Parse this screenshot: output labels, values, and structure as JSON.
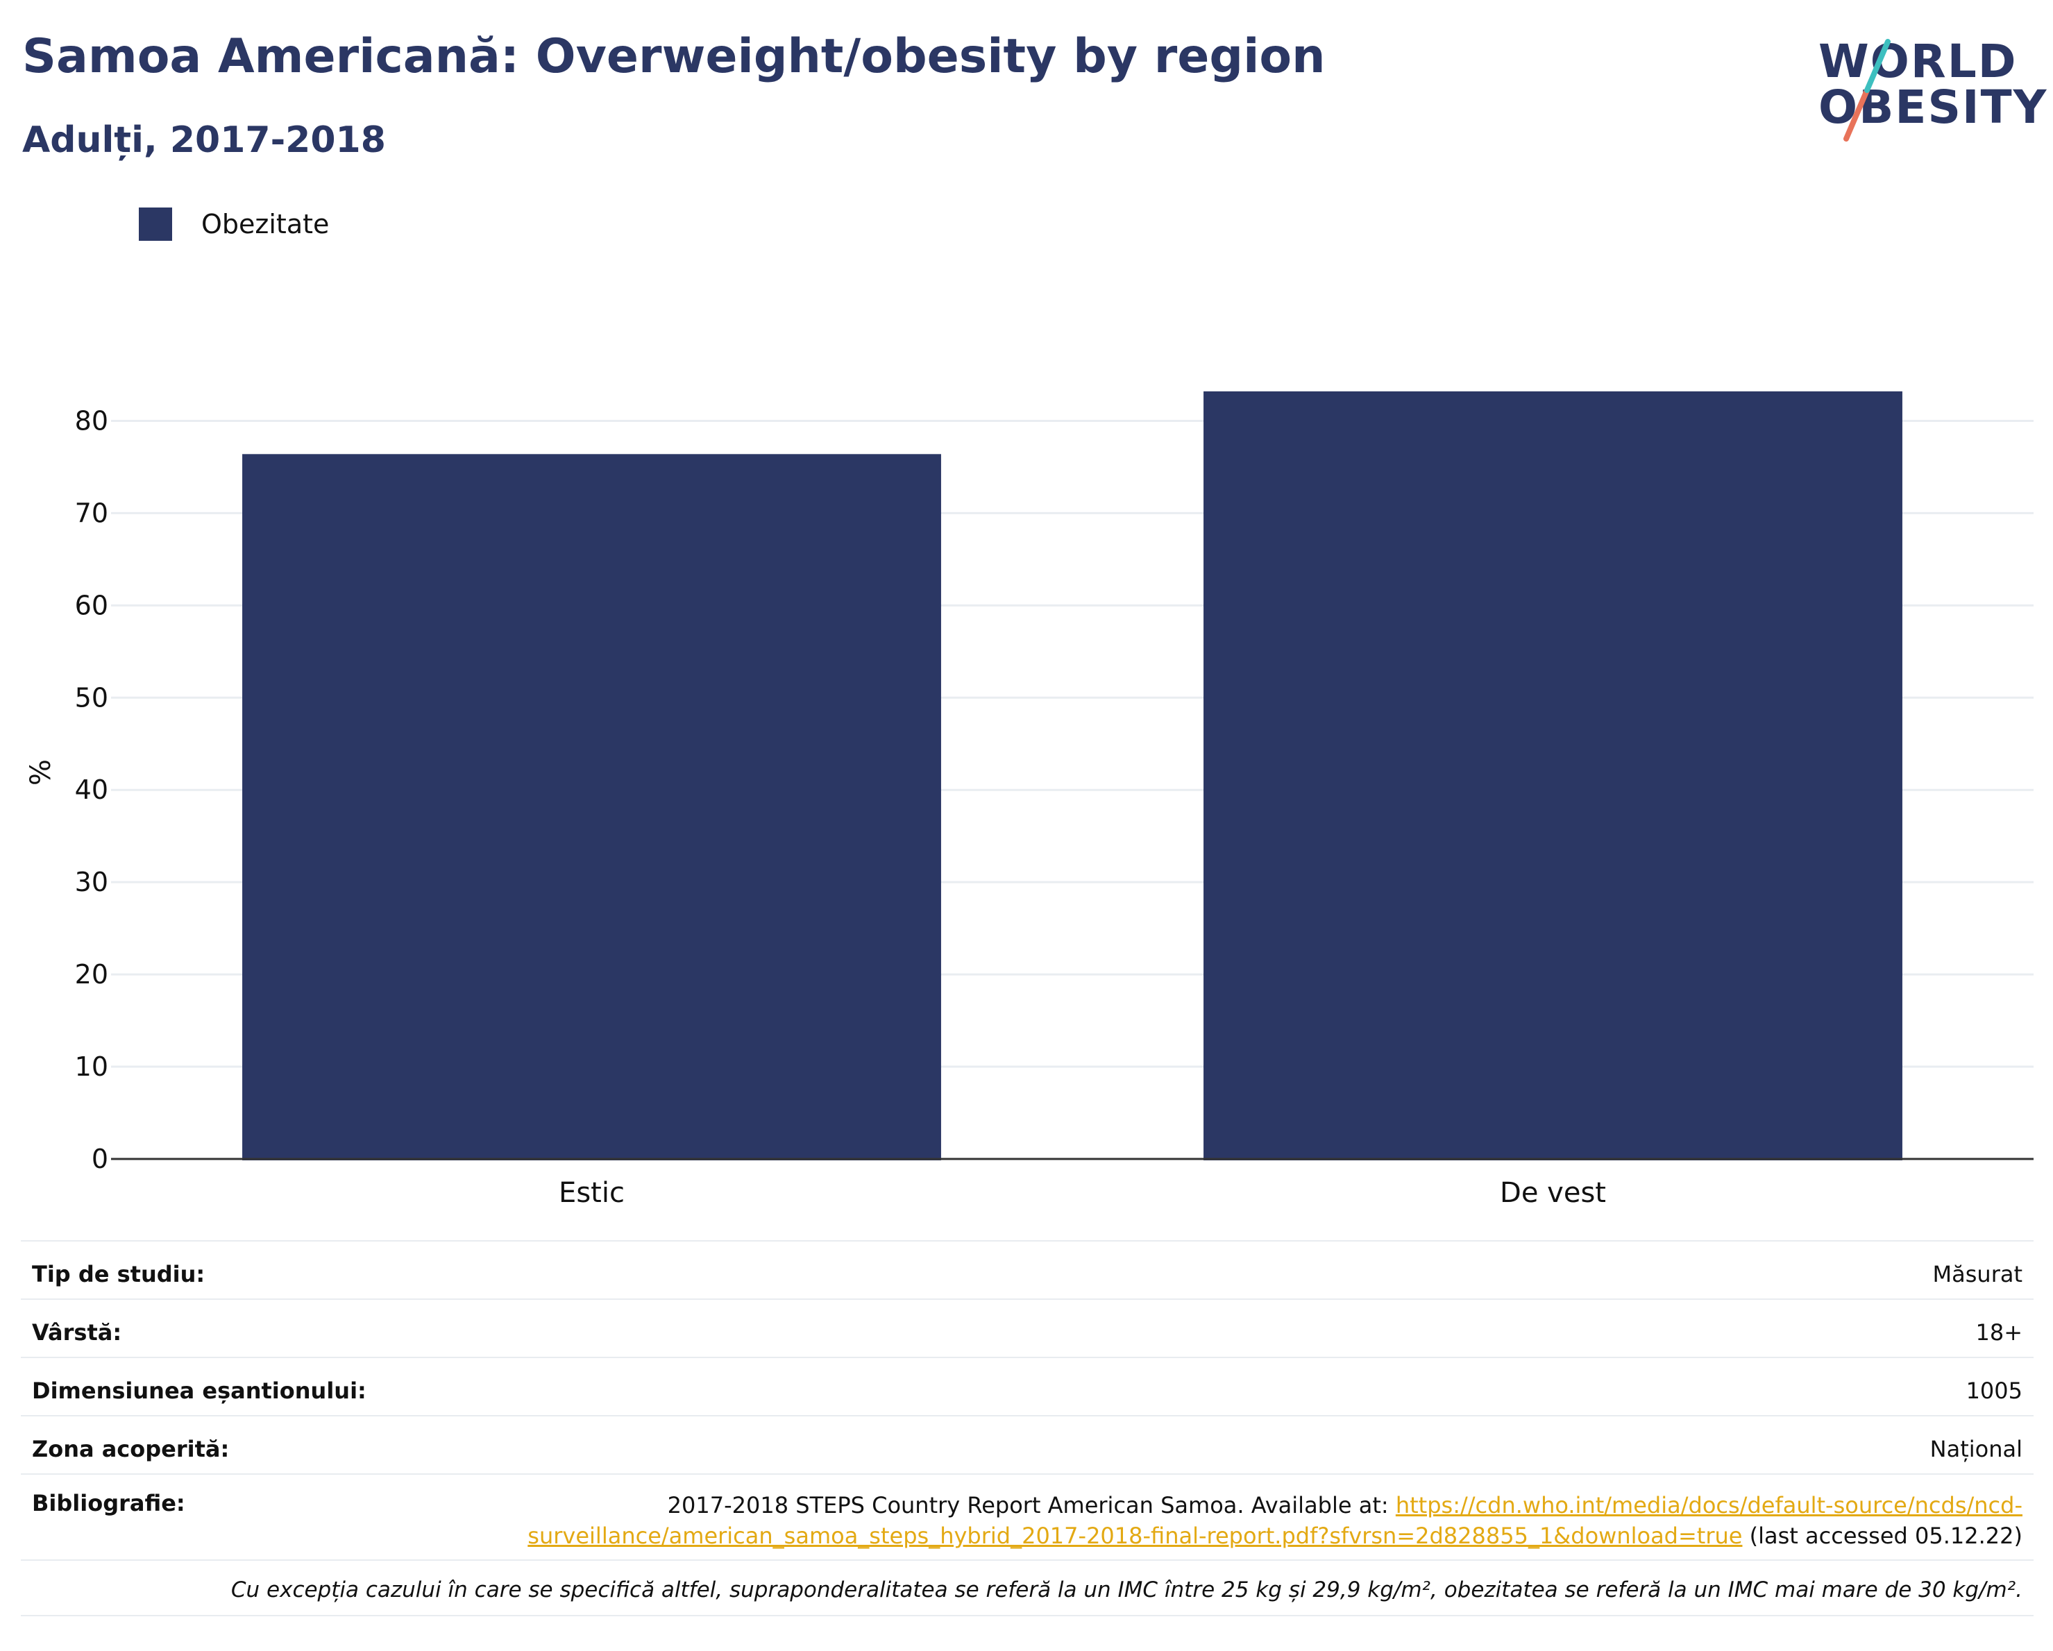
{
  "header": {
    "title": "Samoa Americană: Overweight/obesity by region",
    "subtitle": "Adulți, 2017-2018"
  },
  "logo": {
    "line1": "WORLD",
    "line2": "OBESITY",
    "text_color": "#2b3764",
    "slash_colors": [
      "#3dbfbf",
      "#e8735a"
    ]
  },
  "legend": {
    "items": [
      {
        "label": "Obezitate",
        "color": "#2b3764"
      }
    ]
  },
  "chart_data": {
    "type": "bar",
    "categories": [
      "Estic",
      "De vest"
    ],
    "series": [
      {
        "name": "Obezitate",
        "values": [
          76.4,
          83.2
        ],
        "color": "#2b3764"
      }
    ],
    "ylabel": "%",
    "xlabel": "",
    "ylim": [
      0,
      85
    ],
    "yticks": [
      0,
      10,
      20,
      30,
      40,
      50,
      60,
      70,
      80
    ],
    "grid": true,
    "legend_position": "top-left"
  },
  "info": {
    "rows": [
      {
        "key": "Tip de studiu:",
        "value": "Măsurat"
      },
      {
        "key": "Vârstă:",
        "value": "18+"
      },
      {
        "key": "Dimensiunea eșantionului:",
        "value": "1005"
      },
      {
        "key": "Zona acoperită:",
        "value": "Național"
      }
    ],
    "bibliography": {
      "key": "Bibliografie:",
      "text_before": "2017-2018 STEPS Country Report American Samoa. Available at: ",
      "link": "https://cdn.who.int/media/docs/default-source/ncds/ncd-surveillance/american_samoa_steps_hybrid_2017-2018-final-report.pdf?sfvrsn=2d828855_1&download=true",
      "text_after": " (last accessed 05.12.22)"
    },
    "note": "Cu excepția cazului în care se specifică altfel, supraponderalitatea se referă la un IMC între 25 kg și 29,9 kg/m², obezitatea se referă la un IMC mai mare de 30 kg/m²."
  }
}
